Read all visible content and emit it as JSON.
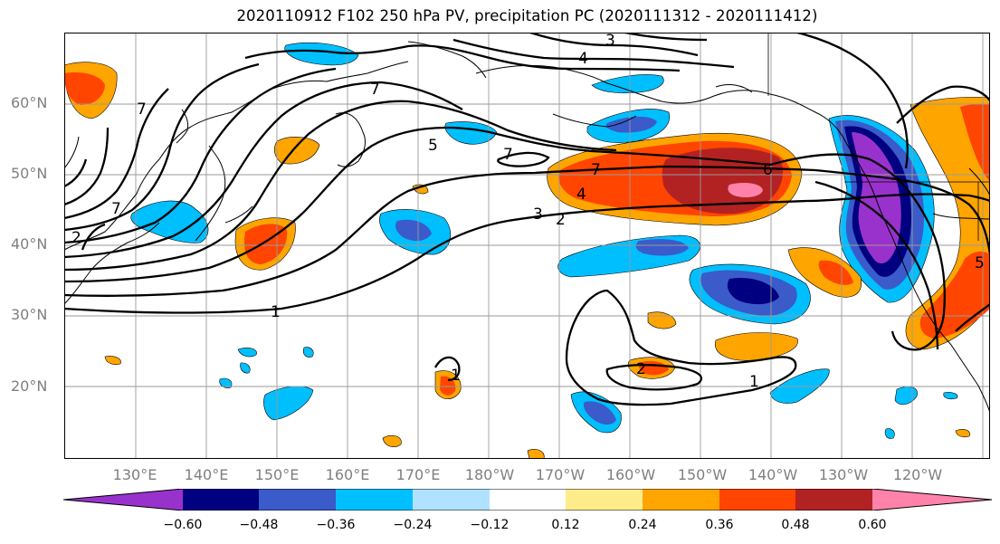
{
  "title": "2020110912 F102 250 hPa PV, precipitation PC (2020111312 - 2020111412)",
  "map": {
    "region": "North Pacific",
    "lon_range": [
      "120°E",
      "110°W"
    ],
    "lat_range": [
      "10°N",
      "70°N"
    ],
    "lat_ticks": [
      "20°N",
      "30°N",
      "40°N",
      "50°N",
      "60°N"
    ],
    "lon_ticks": [
      "130°E",
      "140°E",
      "150°E",
      "160°E",
      "170°E",
      "180°W",
      "170°W",
      "160°W",
      "150°W",
      "140°W",
      "130°W",
      "120°W"
    ],
    "grid": true,
    "coastlines": true,
    "pv_contours": {
      "color": "#000000",
      "labels": [
        "1",
        "1",
        "1",
        "2",
        "2",
        "2",
        "3",
        "3",
        "4",
        "4",
        "5",
        "5",
        "6",
        "7",
        "7",
        "7",
        "7",
        "7"
      ]
    }
  },
  "colorbar": {
    "colors": [
      "#9932CC",
      "#000080",
      "#3A5BC9",
      "#00BFFF",
      "#B0E2FF",
      "#FFFFFF",
      "#FFEC8B",
      "#FFA500",
      "#FF4500",
      "#B22222",
      "#FF82AB"
    ],
    "extend": "both",
    "ticks": [
      "−0.60",
      "−0.48",
      "−0.36",
      "−0.24",
      "−0.12",
      "0.12",
      "0.24",
      "0.36",
      "0.48",
      "0.60"
    ]
  }
}
